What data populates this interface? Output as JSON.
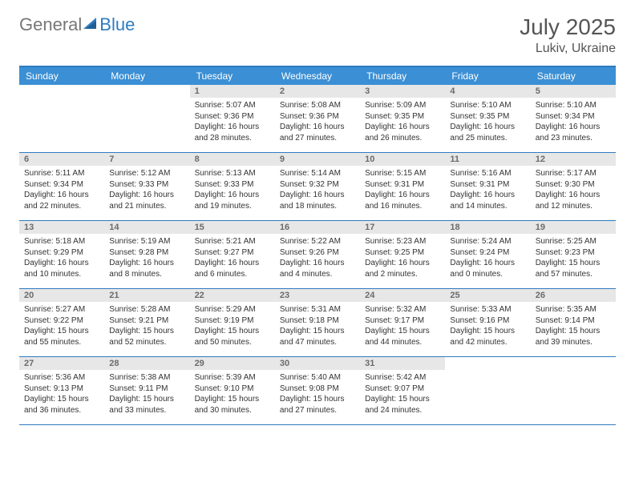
{
  "logo": {
    "part1": "General",
    "part2": "Blue"
  },
  "title": "July 2025",
  "location": "Lukiv, Ukraine",
  "colors": {
    "accent": "#2f7bbf",
    "header_bg": "#3b8fd4",
    "daynum_bg": "#e7e7e7",
    "daynum_text": "#6b6b6b",
    "logo_gray": "#777777",
    "logo_blue": "#2f7bbf",
    "text": "#333333",
    "title_text": "#555555"
  },
  "daynames": [
    "Sunday",
    "Monday",
    "Tuesday",
    "Wednesday",
    "Thursday",
    "Friday",
    "Saturday"
  ],
  "weeks": [
    [
      {
        "empty": true
      },
      {
        "empty": true
      },
      {
        "n": "1",
        "sr": "Sunrise: 5:07 AM",
        "ss": "Sunset: 9:36 PM",
        "dl1": "Daylight: 16 hours",
        "dl2": "and 28 minutes."
      },
      {
        "n": "2",
        "sr": "Sunrise: 5:08 AM",
        "ss": "Sunset: 9:36 PM",
        "dl1": "Daylight: 16 hours",
        "dl2": "and 27 minutes."
      },
      {
        "n": "3",
        "sr": "Sunrise: 5:09 AM",
        "ss": "Sunset: 9:35 PM",
        "dl1": "Daylight: 16 hours",
        "dl2": "and 26 minutes."
      },
      {
        "n": "4",
        "sr": "Sunrise: 5:10 AM",
        "ss": "Sunset: 9:35 PM",
        "dl1": "Daylight: 16 hours",
        "dl2": "and 25 minutes."
      },
      {
        "n": "5",
        "sr": "Sunrise: 5:10 AM",
        "ss": "Sunset: 9:34 PM",
        "dl1": "Daylight: 16 hours",
        "dl2": "and 23 minutes."
      }
    ],
    [
      {
        "n": "6",
        "sr": "Sunrise: 5:11 AM",
        "ss": "Sunset: 9:34 PM",
        "dl1": "Daylight: 16 hours",
        "dl2": "and 22 minutes."
      },
      {
        "n": "7",
        "sr": "Sunrise: 5:12 AM",
        "ss": "Sunset: 9:33 PM",
        "dl1": "Daylight: 16 hours",
        "dl2": "and 21 minutes."
      },
      {
        "n": "8",
        "sr": "Sunrise: 5:13 AM",
        "ss": "Sunset: 9:33 PM",
        "dl1": "Daylight: 16 hours",
        "dl2": "and 19 minutes."
      },
      {
        "n": "9",
        "sr": "Sunrise: 5:14 AM",
        "ss": "Sunset: 9:32 PM",
        "dl1": "Daylight: 16 hours",
        "dl2": "and 18 minutes."
      },
      {
        "n": "10",
        "sr": "Sunrise: 5:15 AM",
        "ss": "Sunset: 9:31 PM",
        "dl1": "Daylight: 16 hours",
        "dl2": "and 16 minutes."
      },
      {
        "n": "11",
        "sr": "Sunrise: 5:16 AM",
        "ss": "Sunset: 9:31 PM",
        "dl1": "Daylight: 16 hours",
        "dl2": "and 14 minutes."
      },
      {
        "n": "12",
        "sr": "Sunrise: 5:17 AM",
        "ss": "Sunset: 9:30 PM",
        "dl1": "Daylight: 16 hours",
        "dl2": "and 12 minutes."
      }
    ],
    [
      {
        "n": "13",
        "sr": "Sunrise: 5:18 AM",
        "ss": "Sunset: 9:29 PM",
        "dl1": "Daylight: 16 hours",
        "dl2": "and 10 minutes."
      },
      {
        "n": "14",
        "sr": "Sunrise: 5:19 AM",
        "ss": "Sunset: 9:28 PM",
        "dl1": "Daylight: 16 hours",
        "dl2": "and 8 minutes."
      },
      {
        "n": "15",
        "sr": "Sunrise: 5:21 AM",
        "ss": "Sunset: 9:27 PM",
        "dl1": "Daylight: 16 hours",
        "dl2": "and 6 minutes."
      },
      {
        "n": "16",
        "sr": "Sunrise: 5:22 AM",
        "ss": "Sunset: 9:26 PM",
        "dl1": "Daylight: 16 hours",
        "dl2": "and 4 minutes."
      },
      {
        "n": "17",
        "sr": "Sunrise: 5:23 AM",
        "ss": "Sunset: 9:25 PM",
        "dl1": "Daylight: 16 hours",
        "dl2": "and 2 minutes."
      },
      {
        "n": "18",
        "sr": "Sunrise: 5:24 AM",
        "ss": "Sunset: 9:24 PM",
        "dl1": "Daylight: 16 hours",
        "dl2": "and 0 minutes."
      },
      {
        "n": "19",
        "sr": "Sunrise: 5:25 AM",
        "ss": "Sunset: 9:23 PM",
        "dl1": "Daylight: 15 hours",
        "dl2": "and 57 minutes."
      }
    ],
    [
      {
        "n": "20",
        "sr": "Sunrise: 5:27 AM",
        "ss": "Sunset: 9:22 PM",
        "dl1": "Daylight: 15 hours",
        "dl2": "and 55 minutes."
      },
      {
        "n": "21",
        "sr": "Sunrise: 5:28 AM",
        "ss": "Sunset: 9:21 PM",
        "dl1": "Daylight: 15 hours",
        "dl2": "and 52 minutes."
      },
      {
        "n": "22",
        "sr": "Sunrise: 5:29 AM",
        "ss": "Sunset: 9:19 PM",
        "dl1": "Daylight: 15 hours",
        "dl2": "and 50 minutes."
      },
      {
        "n": "23",
        "sr": "Sunrise: 5:31 AM",
        "ss": "Sunset: 9:18 PM",
        "dl1": "Daylight: 15 hours",
        "dl2": "and 47 minutes."
      },
      {
        "n": "24",
        "sr": "Sunrise: 5:32 AM",
        "ss": "Sunset: 9:17 PM",
        "dl1": "Daylight: 15 hours",
        "dl2": "and 44 minutes."
      },
      {
        "n": "25",
        "sr": "Sunrise: 5:33 AM",
        "ss": "Sunset: 9:16 PM",
        "dl1": "Daylight: 15 hours",
        "dl2": "and 42 minutes."
      },
      {
        "n": "26",
        "sr": "Sunrise: 5:35 AM",
        "ss": "Sunset: 9:14 PM",
        "dl1": "Daylight: 15 hours",
        "dl2": "and 39 minutes."
      }
    ],
    [
      {
        "n": "27",
        "sr": "Sunrise: 5:36 AM",
        "ss": "Sunset: 9:13 PM",
        "dl1": "Daylight: 15 hours",
        "dl2": "and 36 minutes."
      },
      {
        "n": "28",
        "sr": "Sunrise: 5:38 AM",
        "ss": "Sunset: 9:11 PM",
        "dl1": "Daylight: 15 hours",
        "dl2": "and 33 minutes."
      },
      {
        "n": "29",
        "sr": "Sunrise: 5:39 AM",
        "ss": "Sunset: 9:10 PM",
        "dl1": "Daylight: 15 hours",
        "dl2": "and 30 minutes."
      },
      {
        "n": "30",
        "sr": "Sunrise: 5:40 AM",
        "ss": "Sunset: 9:08 PM",
        "dl1": "Daylight: 15 hours",
        "dl2": "and 27 minutes."
      },
      {
        "n": "31",
        "sr": "Sunrise: 5:42 AM",
        "ss": "Sunset: 9:07 PM",
        "dl1": "Daylight: 15 hours",
        "dl2": "and 24 minutes."
      },
      {
        "empty": true
      },
      {
        "empty": true
      }
    ]
  ]
}
